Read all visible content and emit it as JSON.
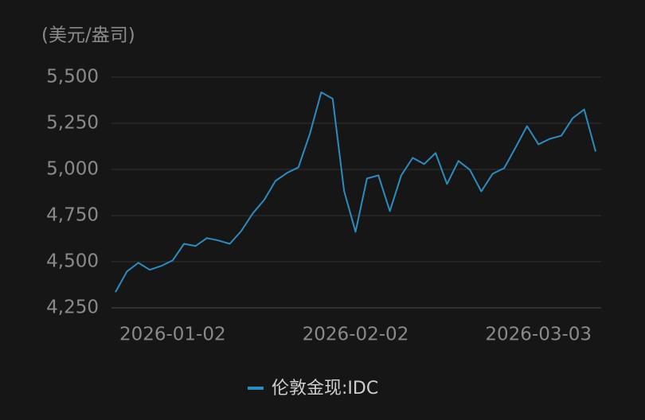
{
  "chart_data": {
    "type": "line",
    "y_axis_label": "(美元/盎司)",
    "categories": [
      null,
      null,
      null,
      null,
      null,
      "2026-01-02",
      null,
      null,
      null,
      null,
      null,
      null,
      null,
      null,
      null,
      null,
      null,
      null,
      null,
      null,
      null,
      "2026-02-02",
      null,
      null,
      null,
      null,
      null,
      null,
      null,
      null,
      null,
      null,
      null,
      null,
      null,
      null,
      null,
      "2026-03-03",
      null,
      null,
      null,
      null,
      null
    ],
    "series": [
      {
        "name": "伦敦金现:IDC",
        "color": "#2b8cc0",
        "values": [
          4335,
          4447,
          4494,
          4456,
          4477,
          4507,
          4597,
          4585,
          4628,
          4615,
          4597,
          4666,
          4761,
          4834,
          4938,
          4981,
          5011,
          5192,
          5418,
          5383,
          4883,
          4662,
          4951,
          4968,
          4774,
          4968,
          5063,
          5029,
          5089,
          4921,
          5046,
          4998,
          4881,
          4977,
          5007,
          5119,
          5235,
          5136,
          5166,
          5183,
          5278,
          5325,
          5097
        ]
      }
    ],
    "ylim": [
      4250,
      5500
    ],
    "yticks": [
      {
        "value": 4250,
        "label": "4,250"
      },
      {
        "value": 4500,
        "label": "4,500"
      },
      {
        "value": 4750,
        "label": "4,750"
      },
      {
        "value": 5000,
        "label": "5,000"
      },
      {
        "value": 5250,
        "label": "5,250"
      },
      {
        "value": 5500,
        "label": "5,500"
      }
    ],
    "grid": true
  }
}
